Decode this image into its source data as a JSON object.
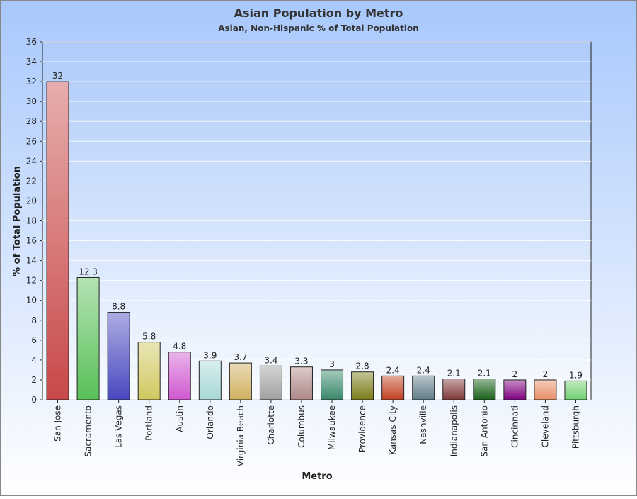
{
  "chart_data": {
    "type": "bar",
    "title": "Asian Population by Metro",
    "subtitle": "Asian, Non-Hispanic % of Total Population",
    "x_label": "Metro",
    "y_label": "% of Total Population",
    "categories": [
      "San Jose",
      "Sacramento",
      "Las Vegas",
      "Portland",
      "Austin",
      "Orlando",
      "Virginia Beach",
      "Charlotte",
      "Columbus",
      "Milwaukee",
      "Providence",
      "Kansas City",
      "Nashville",
      "Indianapolis",
      "San Antonio",
      "Cincinnati",
      "Cleveland",
      "Pittsburgh"
    ],
    "values": [
      32,
      12.3,
      8.8,
      5.8,
      4.8,
      3.9,
      3.7,
      3.4,
      3.3,
      3,
      2.8,
      2.4,
      2.4,
      2.1,
      2.1,
      2,
      2,
      1.9
    ],
    "colors": [
      "#c84848",
      "#58c058",
      "#4848c0",
      "#d0c860",
      "#d058d0",
      "#a8d8d8",
      "#d0b060",
      "#a0a0a0",
      "#b08888",
      "#38886a",
      "#7c7c18",
      "#c04020",
      "#607c88",
      "#803838",
      "#186018",
      "#800080",
      "#e89068",
      "#70d070"
    ],
    "ylim": [
      0,
      36
    ],
    "yticks": [
      0,
      2,
      4,
      6,
      8,
      10,
      12,
      14,
      16,
      18,
      20,
      22,
      24,
      26,
      28,
      30,
      32,
      34,
      36
    ],
    "grid": true
  }
}
